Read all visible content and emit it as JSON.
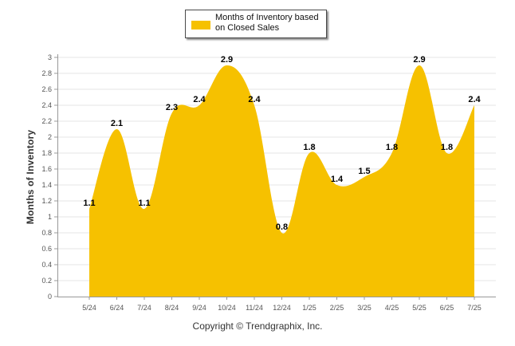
{
  "chart_data": {
    "type": "area",
    "x": [
      "5/24",
      "6/24",
      "7/24",
      "8/24",
      "9/24",
      "10/24",
      "11/24",
      "12/24",
      "1/25",
      "2/25",
      "3/25",
      "4/25",
      "5/25",
      "6/25",
      "7/25"
    ],
    "series": [
      {
        "name": "Months of Inventory based on Closed Sales",
        "values": [
          1.1,
          2.1,
          1.1,
          2.3,
          2.4,
          2.9,
          2.4,
          0.8,
          1.8,
          1.4,
          1.5,
          1.8,
          2.9,
          1.8,
          2.4
        ],
        "color": "#F6C100"
      }
    ],
    "ylabel": "Months of Inventory",
    "ylim": [
      0,
      3
    ],
    "yticks": [
      0,
      0.2,
      0.4,
      0.6,
      0.8,
      1,
      1.2,
      1.4,
      1.6,
      1.8,
      2,
      2.2,
      2.4,
      2.6,
      2.8,
      3
    ],
    "grid": true,
    "legend_position": "top-center",
    "data_labels": true
  },
  "legend": {
    "label": "Months of Inventory based on Closed Sales"
  },
  "footer": {
    "copyright": "Copyright © Trendgraphix, Inc."
  }
}
